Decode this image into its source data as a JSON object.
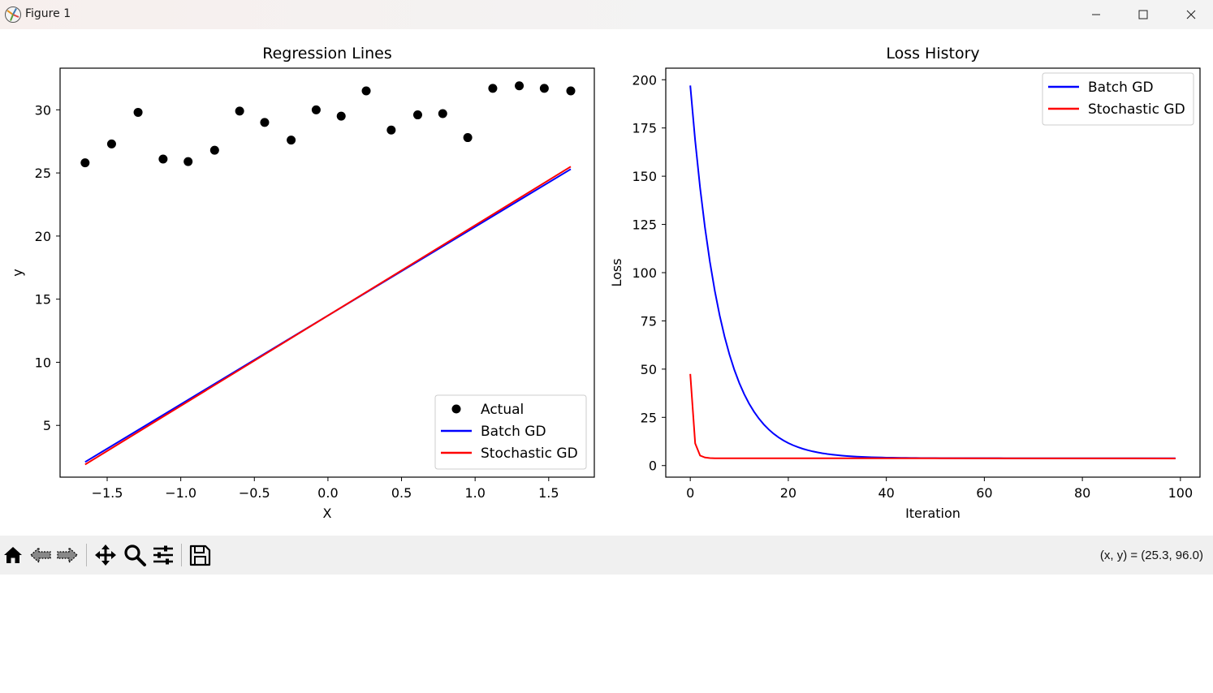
{
  "window": {
    "title": "Figure 1"
  },
  "toolbar": {
    "tools": [
      "home-icon",
      "back-icon",
      "forward-icon",
      "pan-icon",
      "zoom-icon",
      "configure-subplots-icon",
      "save-icon"
    ],
    "coords_text": "(x, y) = (25.3, 96.0)"
  },
  "chart_data": [
    {
      "type": "scatter",
      "title": "Regression Lines",
      "xlabel": "X",
      "ylabel": "y",
      "xlim": [
        -1.82,
        1.81
      ],
      "ylim": [
        0.9,
        33.3
      ],
      "xticks": [
        -1.5,
        -1.0,
        -0.5,
        0.0,
        0.5,
        1.0,
        1.5
      ],
      "xtick_labels": [
        "−1.5",
        "−1.0",
        "−0.5",
        "0.0",
        "0.5",
        "1.0",
        "1.5"
      ],
      "yticks": [
        5,
        10,
        15,
        20,
        25,
        30
      ],
      "ytick_labels": [
        "5",
        "10",
        "15",
        "20",
        "25",
        "30"
      ],
      "legend": {
        "placement": "lower-right",
        "entries": [
          {
            "label": "Actual",
            "kind": "marker",
            "color": "#000000"
          },
          {
            "label": "Batch GD",
            "kind": "line",
            "color": "#0000ff"
          },
          {
            "label": "Stochastic GD",
            "kind": "line",
            "color": "#ff0000"
          }
        ]
      },
      "scatter": {
        "name": "Actual",
        "color": "#000000",
        "points": [
          [
            -1.65,
            25.8
          ],
          [
            -1.47,
            27.3
          ],
          [
            -1.29,
            29.8
          ],
          [
            -1.12,
            26.1
          ],
          [
            -0.95,
            25.9
          ],
          [
            -0.77,
            26.8
          ],
          [
            -0.6,
            29.9
          ],
          [
            -0.43,
            29.0
          ],
          [
            -0.25,
            27.6
          ],
          [
            -0.08,
            30.0
          ],
          [
            0.09,
            29.5
          ],
          [
            0.26,
            31.5
          ],
          [
            0.43,
            28.4
          ],
          [
            0.61,
            29.6
          ],
          [
            0.78,
            29.7
          ],
          [
            0.95,
            27.8
          ],
          [
            1.12,
            31.7
          ],
          [
            1.3,
            31.9
          ],
          [
            1.47,
            31.7
          ],
          [
            1.65,
            31.5
          ]
        ]
      },
      "series": [
        {
          "name": "Batch GD",
          "color": "#0000ff",
          "x": [
            -1.65,
            1.65
          ],
          "y": [
            2.1,
            25.3
          ]
        },
        {
          "name": "Stochastic GD",
          "color": "#ff0000",
          "x": [
            -1.65,
            1.65
          ],
          "y": [
            1.9,
            25.5
          ]
        }
      ]
    },
    {
      "type": "line",
      "title": "Loss History",
      "xlabel": "Iteration",
      "ylabel": "Loss",
      "xlim": [
        -5,
        104
      ],
      "ylim": [
        -6,
        206
      ],
      "xticks": [
        0,
        20,
        40,
        60,
        80,
        100
      ],
      "xtick_labels": [
        "0",
        "20",
        "40",
        "60",
        "80",
        "100"
      ],
      "yticks": [
        0,
        25,
        50,
        75,
        100,
        125,
        150,
        175,
        200
      ],
      "ytick_labels": [
        "0",
        "25",
        "50",
        "75",
        "100",
        "125",
        "150",
        "175",
        "200"
      ],
      "legend": {
        "placement": "upper-right",
        "entries": [
          {
            "label": "Batch GD",
            "kind": "line",
            "color": "#0000ff"
          },
          {
            "label": "Stochastic GD",
            "kind": "line",
            "color": "#ff0000"
          }
        ]
      },
      "series": [
        {
          "name": "Batch GD",
          "color": "#0000ff",
          "model": {
            "kind": "exp_decay",
            "y0": 197,
            "floor": 3.8,
            "rate": 0.16,
            "x_start": 0,
            "x_end": 99
          }
        },
        {
          "name": "Stochastic GD",
          "color": "#ff0000",
          "x": [
            0,
            1,
            2,
            3,
            4,
            5,
            6,
            99
          ],
          "y": [
            47.5,
            11.5,
            5.2,
            4.2,
            3.9,
            3.8,
            3.8,
            3.7
          ]
        }
      ]
    }
  ]
}
